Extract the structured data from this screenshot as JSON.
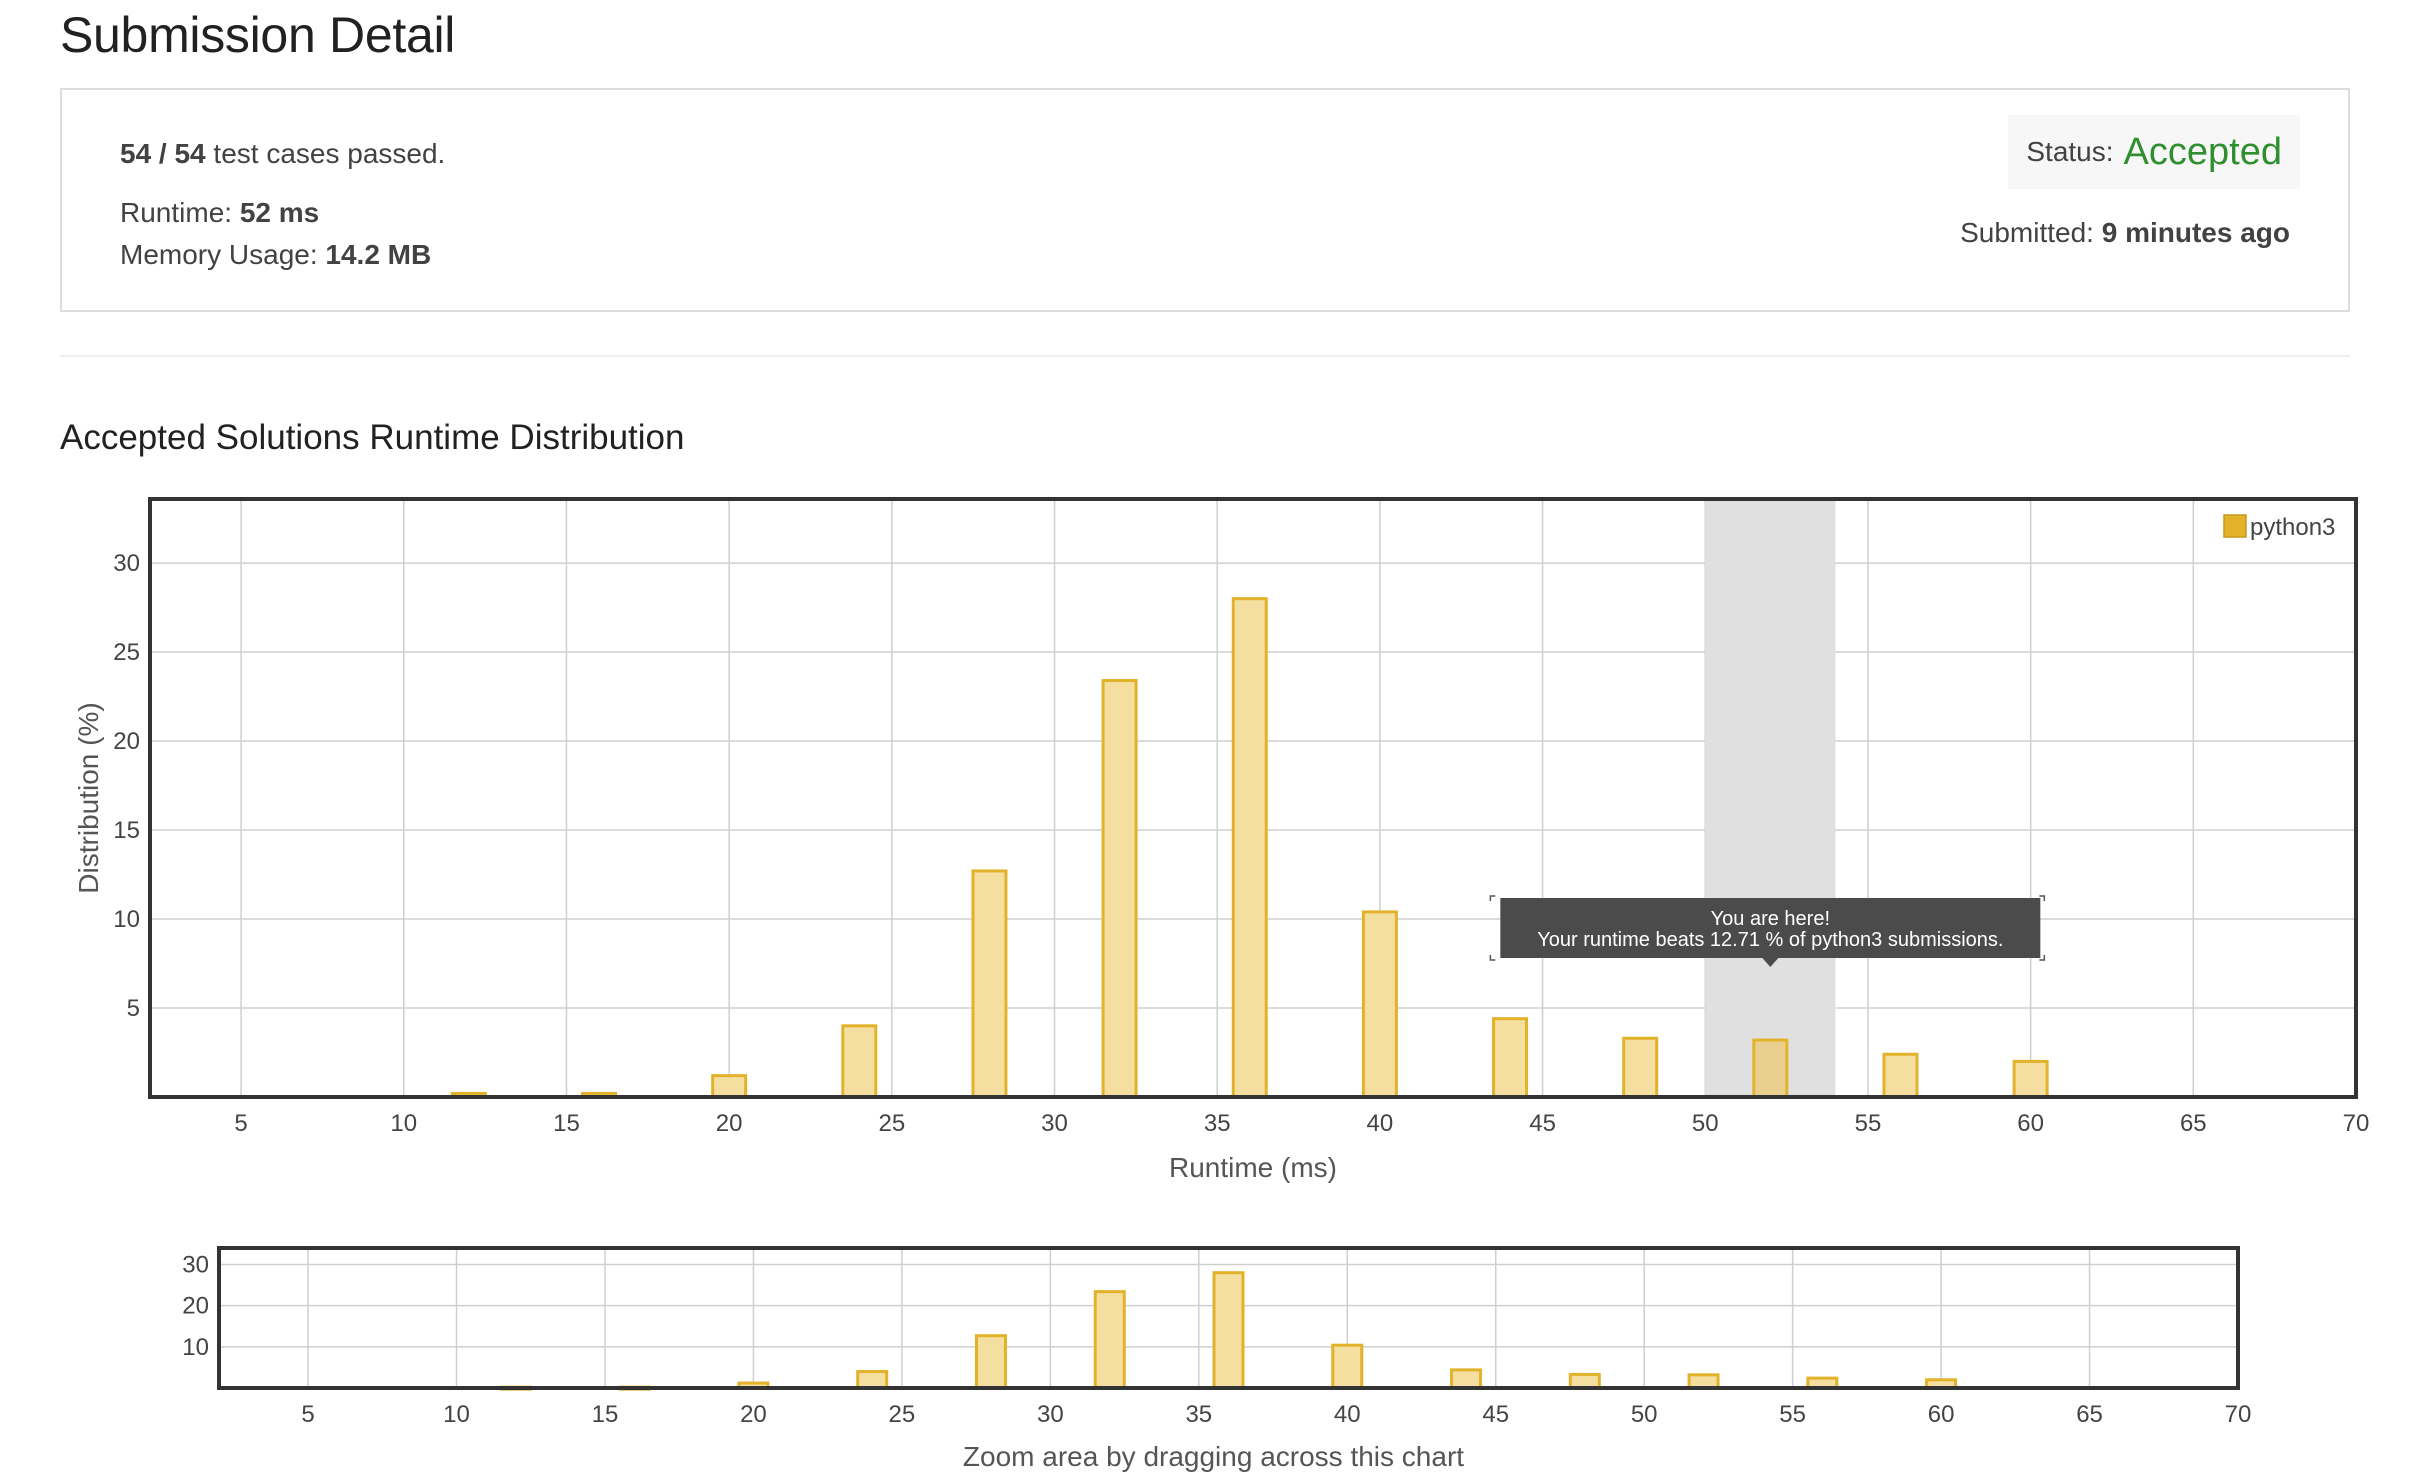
{
  "page": {
    "title": "Submission Detail"
  },
  "summary": {
    "passed": "54 / 54",
    "passed_suffix": "test cases passed.",
    "runtime_label": "Runtime:",
    "runtime_value": "52 ms",
    "memory_label": "Memory Usage:",
    "memory_value": "14.2 MB",
    "status_label": "Status:",
    "status_value": "Accepted",
    "submitted_label": "Submitted:",
    "submitted_value": "9 minutes ago"
  },
  "distribution": {
    "title": "Accepted Solutions Runtime Distribution"
  },
  "tooltip": {
    "line1": "You are here!",
    "line2": "Your runtime beats 12.71 % of python3 submissions."
  },
  "colors": {
    "bar_fill": "#f5dfa0",
    "bar_stroke": "#e3b22b",
    "highlight_bar_fill": "#ead08e",
    "highlight_band": "#e0e0e0",
    "status_accepted": "#2f8f2f",
    "tooltip_bg": "#4b4b4b"
  },
  "chart_data": [
    {
      "type": "bar",
      "series": [
        {
          "name": "python3",
          "x": [
            12,
            16,
            20,
            24,
            28,
            32,
            36,
            40,
            44,
            48,
            52,
            56,
            60
          ],
          "values": [
            0.2,
            0.2,
            1.2,
            4.0,
            12.7,
            23.4,
            28.0,
            10.4,
            4.4,
            3.3,
            3.2,
            2.4,
            2.0
          ]
        }
      ],
      "highlight_bin": [
        50,
        54
      ],
      "highlight_x": 52,
      "xlabel": "Runtime (ms)",
      "ylabel": "Distribution (%)",
      "xlim": [
        2.2,
        70
      ],
      "ylim": [
        0,
        33.6
      ],
      "xticks": [
        5,
        10,
        15,
        20,
        25,
        30,
        35,
        40,
        45,
        50,
        55,
        60,
        65,
        70
      ],
      "yticks": [
        5,
        10,
        15,
        20,
        25,
        30
      ],
      "grid": true,
      "legend": "top-right"
    },
    {
      "type": "bar",
      "series": [
        {
          "x": [
            12,
            16,
            20,
            24,
            28,
            32,
            36,
            40,
            44,
            48,
            52,
            56,
            60
          ],
          "values": [
            0.2,
            0.2,
            1.2,
            4.0,
            12.7,
            23.4,
            28.0,
            10.4,
            4.4,
            3.3,
            3.2,
            2.4,
            2.0
          ]
        }
      ],
      "xlabel": "Zoom area by dragging across this chart",
      "xlim": [
        2,
        70
      ],
      "ylim": [
        0,
        34
      ],
      "xticks": [
        5,
        10,
        15,
        20,
        25,
        30,
        35,
        40,
        45,
        50,
        55,
        60,
        65,
        70
      ],
      "yticks": [
        10,
        20,
        30
      ],
      "grid": true
    }
  ]
}
